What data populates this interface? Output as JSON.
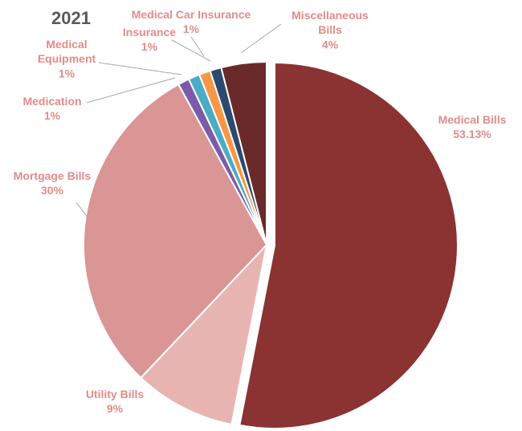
{
  "chart_data": {
    "type": "pie",
    "title": "2021",
    "slices": [
      {
        "label": "Medical Bills",
        "percent_label": "53.13%",
        "value": 53.13,
        "color": "#8b3232",
        "exploded": true
      },
      {
        "label": "Utility Bills",
        "percent_label": "9%",
        "value": 9,
        "color": "#e8b4b2",
        "exploded": false
      },
      {
        "label": "Mortgage Bills",
        "percent_label": "30%",
        "value": 30,
        "color": "#d99694",
        "exploded": false
      },
      {
        "label": "Medication",
        "percent_label": "1%",
        "value": 1,
        "color": "#7b5ba8",
        "exploded": false
      },
      {
        "label": "Medical Equipment",
        "percent_label": "1%",
        "value": 1,
        "color": "#4bacc6",
        "exploded": false
      },
      {
        "label": "Medical Car Insurance",
        "percent_label": "1%",
        "value": 1,
        "color": "#f79646",
        "exploded": false
      },
      {
        "label": "Insurance",
        "percent_label": "1%",
        "value": 1,
        "color": "#2c4a6e",
        "exploded": false
      },
      {
        "label": "Miscellaneous Bills",
        "percent_label": "4%",
        "value": 4,
        "color": "#6b2a2a",
        "exploded": false
      }
    ],
    "label_color": "#e08c8a"
  }
}
